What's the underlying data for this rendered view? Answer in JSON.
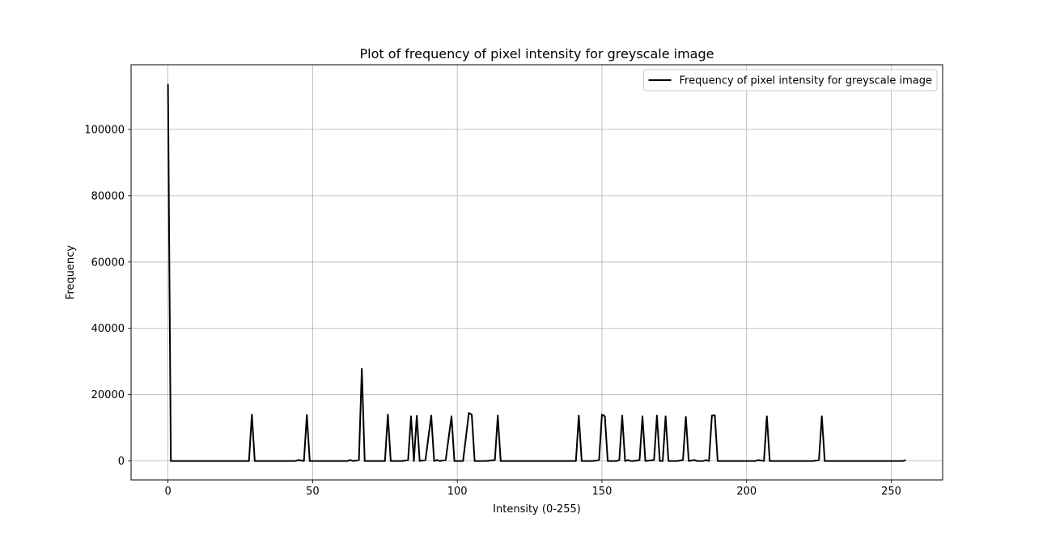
{
  "chart_data": {
    "type": "line",
    "title": "Plot of frequency of pixel intensity for greyscale image",
    "xlabel": "Intensity (0-255)",
    "ylabel": "Frequency",
    "xlim": [
      -12.75,
      267.75
    ],
    "ylim": [
      -5700,
      119500
    ],
    "xticks": [
      0,
      50,
      100,
      150,
      200,
      250
    ],
    "yticks": [
      0,
      20000,
      40000,
      60000,
      80000,
      100000
    ],
    "grid": true,
    "legend_position": "upper right",
    "series": [
      {
        "name": "Frequency of pixel intensity for greyscale image",
        "color": "#000000",
        "points": [
          [
            0,
            113700
          ],
          [
            1,
            0
          ],
          [
            27,
            0
          ],
          [
            28,
            0
          ],
          [
            29,
            14000
          ],
          [
            30,
            0
          ],
          [
            44,
            0
          ],
          [
            45,
            300
          ],
          [
            47,
            0
          ],
          [
            48,
            13900
          ],
          [
            49,
            0
          ],
          [
            62,
            0
          ],
          [
            63,
            300
          ],
          [
            64,
            0
          ],
          [
            66,
            300
          ],
          [
            67,
            27800
          ],
          [
            68,
            0
          ],
          [
            75,
            0
          ],
          [
            76,
            14000
          ],
          [
            77,
            0
          ],
          [
            81,
            0
          ],
          [
            83,
            300
          ],
          [
            84,
            13500
          ],
          [
            85,
            0
          ],
          [
            86,
            13600
          ],
          [
            87,
            0
          ],
          [
            89,
            300
          ],
          [
            91,
            13700
          ],
          [
            92,
            0
          ],
          [
            93,
            300
          ],
          [
            94,
            0
          ],
          [
            96,
            300
          ],
          [
            98,
            13500
          ],
          [
            99,
            0
          ],
          [
            102,
            0
          ],
          [
            104,
            14500
          ],
          [
            105,
            14000
          ],
          [
            106,
            0
          ],
          [
            110,
            0
          ],
          [
            113,
            300
          ],
          [
            114,
            13700
          ],
          [
            115,
            0
          ],
          [
            141,
            0
          ],
          [
            142,
            13700
          ],
          [
            143,
            0
          ],
          [
            147,
            0
          ],
          [
            149,
            300
          ],
          [
            150,
            14000
          ],
          [
            151,
            13500
          ],
          [
            152,
            0
          ],
          [
            155,
            0
          ],
          [
            156,
            300
          ],
          [
            157,
            13700
          ],
          [
            158,
            0
          ],
          [
            159,
            300
          ],
          [
            160,
            0
          ],
          [
            161,
            0
          ],
          [
            163,
            300
          ],
          [
            164,
            13500
          ],
          [
            165,
            0
          ],
          [
            168,
            300
          ],
          [
            169,
            13700
          ],
          [
            170,
            0
          ],
          [
            171,
            0
          ],
          [
            172,
            13500
          ],
          [
            173,
            0
          ],
          [
            176,
            0
          ],
          [
            178,
            300
          ],
          [
            179,
            13300
          ],
          [
            180,
            0
          ],
          [
            182,
            300
          ],
          [
            183,
            0
          ],
          [
            185,
            0
          ],
          [
            186,
            300
          ],
          [
            187,
            0
          ],
          [
            188,
            13700
          ],
          [
            189,
            13800
          ],
          [
            190,
            0
          ],
          [
            200,
            0
          ],
          [
            203,
            0
          ],
          [
            204,
            300
          ],
          [
            206,
            0
          ],
          [
            207,
            13500
          ],
          [
            208,
            0
          ],
          [
            223,
            0
          ],
          [
            225,
            300
          ],
          [
            226,
            13500
          ],
          [
            227,
            0
          ],
          [
            254,
            0
          ],
          [
            255,
            300
          ]
        ]
      }
    ]
  }
}
